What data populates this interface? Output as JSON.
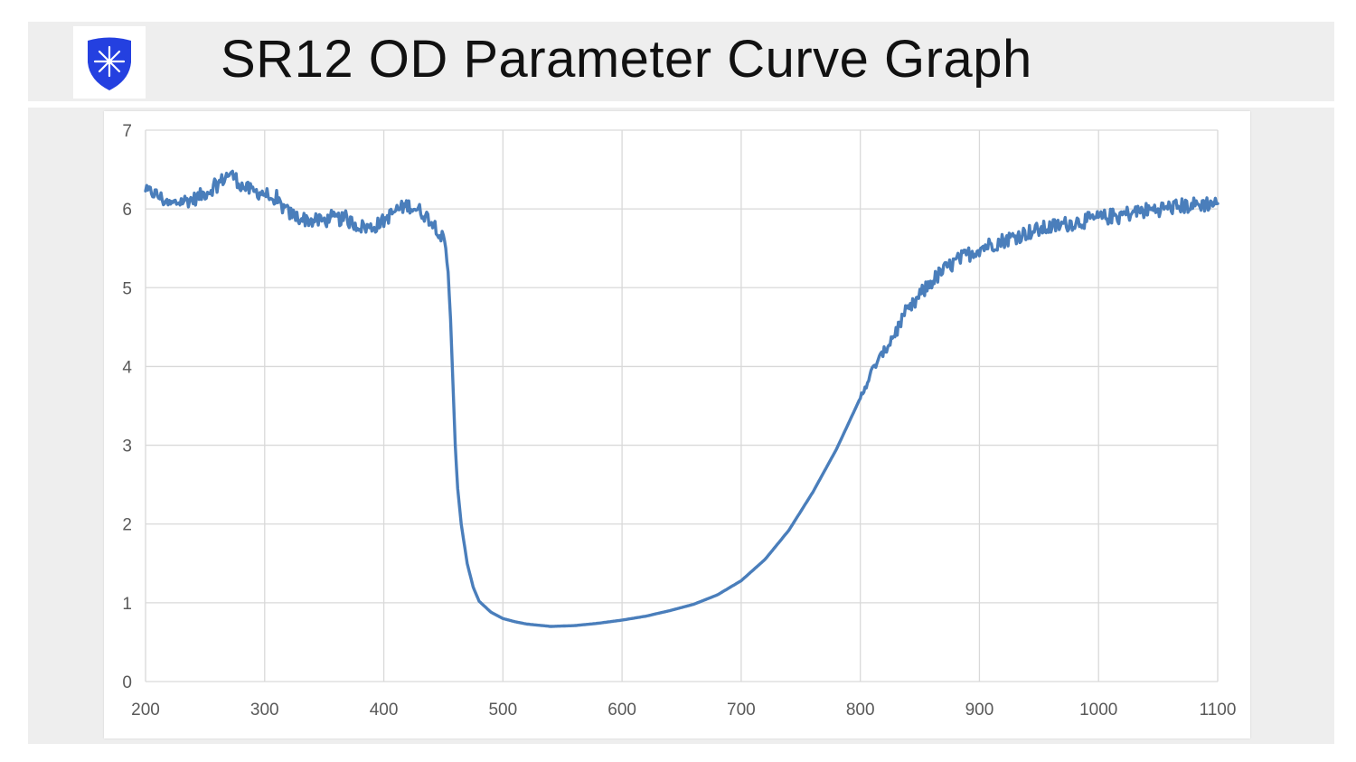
{
  "header": {
    "title": "SR12 OD Parameter Curve Graph",
    "logo_icon": "shield-star-icon"
  },
  "colors": {
    "header_bg": "#eeeeee",
    "logo_blue": "#2440e0",
    "line": "#4a7ebb",
    "grid": "#d9d9d9",
    "tick_text": "#595959"
  },
  "chart_data": {
    "type": "line",
    "title": "",
    "xlabel": "",
    "ylabel": "",
    "xlim": [
      200,
      1100
    ],
    "ylim": [
      0,
      7
    ],
    "x_ticks": [
      200,
      300,
      400,
      500,
      600,
      700,
      800,
      900,
      1000,
      1100
    ],
    "y_ticks": [
      0,
      1,
      2,
      3,
      4,
      5,
      6,
      7
    ],
    "grid": true,
    "legend": "none",
    "series": [
      {
        "color": "#4a7ebb",
        "noisy_ranges": [
          [
            200,
            452
          ],
          [
            800,
            1100
          ]
        ],
        "x": [
          200,
          205,
          212,
          220,
          230,
          240,
          250,
          260,
          270,
          275,
          280,
          290,
          300,
          310,
          320,
          330,
          340,
          350,
          360,
          370,
          380,
          390,
          400,
          410,
          420,
          430,
          440,
          445,
          450,
          452,
          454,
          456,
          458,
          460,
          462,
          465,
          470,
          475,
          480,
          490,
          500,
          510,
          520,
          540,
          560,
          580,
          600,
          620,
          640,
          660,
          680,
          700,
          720,
          740,
          760,
          780,
          800,
          810,
          820,
          830,
          840,
          850,
          860,
          870,
          880,
          890,
          900,
          920,
          940,
          960,
          980,
          1000,
          1020,
          1040,
          1060,
          1080,
          1100
        ],
        "y": [
          6.2,
          6.22,
          6.15,
          6.05,
          6.1,
          6.12,
          6.2,
          6.3,
          6.45,
          6.4,
          6.3,
          6.22,
          6.2,
          6.1,
          5.95,
          5.88,
          5.85,
          5.85,
          5.88,
          5.85,
          5.78,
          5.76,
          5.85,
          5.98,
          6.05,
          5.98,
          5.85,
          5.75,
          5.6,
          5.45,
          5.2,
          4.6,
          3.8,
          3.0,
          2.45,
          2.0,
          1.5,
          1.2,
          1.02,
          0.88,
          0.8,
          0.76,
          0.73,
          0.7,
          0.71,
          0.74,
          0.78,
          0.83,
          0.9,
          0.98,
          1.1,
          1.28,
          1.55,
          1.92,
          2.4,
          2.95,
          3.6,
          3.95,
          4.2,
          4.45,
          4.68,
          4.9,
          5.08,
          5.22,
          5.33,
          5.42,
          5.5,
          5.6,
          5.7,
          5.77,
          5.83,
          5.88,
          5.93,
          5.98,
          6.02,
          6.05,
          6.08
        ]
      }
    ]
  }
}
